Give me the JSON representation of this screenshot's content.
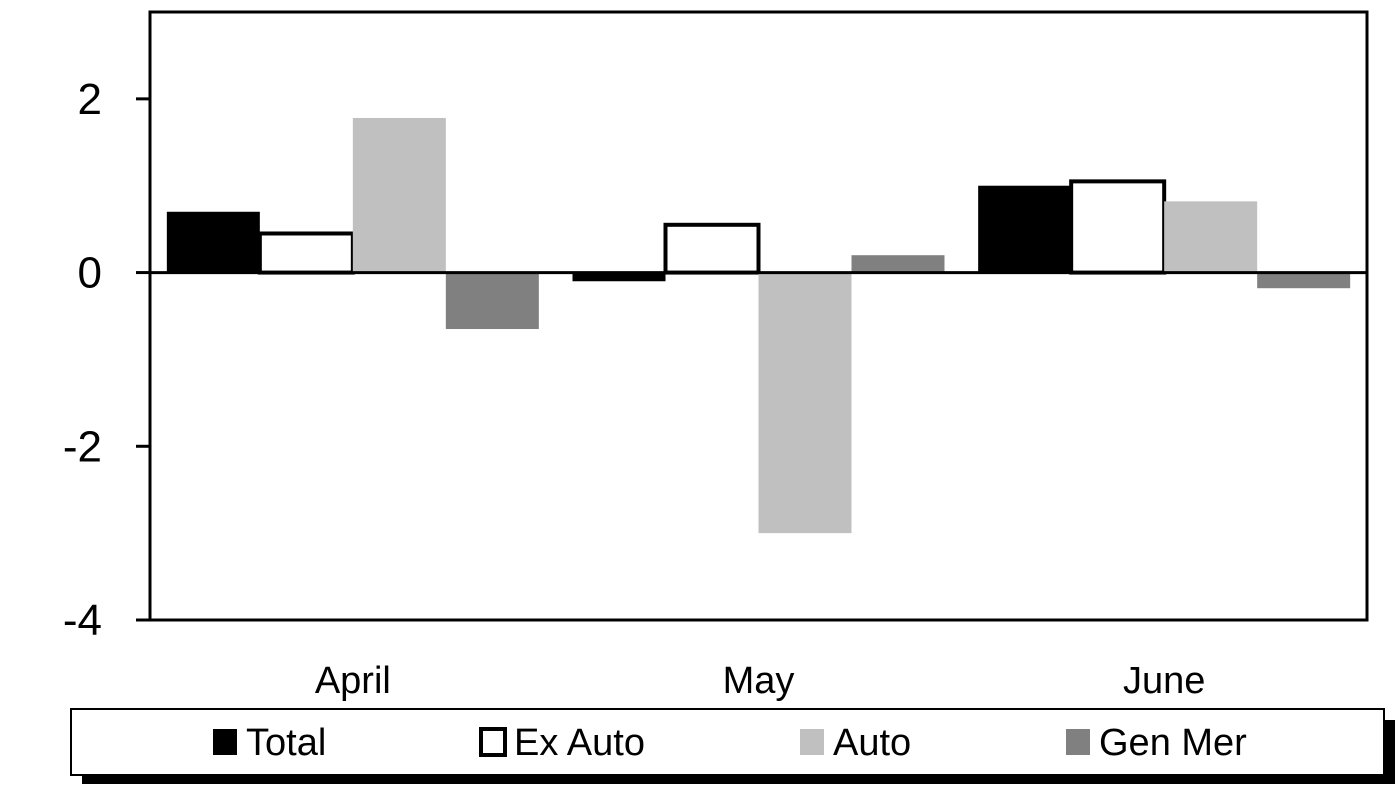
{
  "chart_data": {
    "type": "bar",
    "categories": [
      "April",
      "May",
      "June"
    ],
    "series": [
      {
        "name": "Total",
        "color": "#000000",
        "outline": false,
        "values": [
          0.7,
          -0.1,
          1.0
        ]
      },
      {
        "name": "Ex Auto",
        "color": "#ffffff",
        "outline": true,
        "values": [
          0.45,
          0.55,
          1.05
        ]
      },
      {
        "name": "Auto",
        "color": "#c0c0c0",
        "outline": false,
        "values": [
          1.78,
          -3.0,
          0.82
        ]
      },
      {
        "name": "Gen Mer",
        "color": "#808080",
        "outline": false,
        "values": [
          -0.65,
          0.2,
          -0.18
        ]
      }
    ],
    "yticks": [
      "2",
      "0",
      "-2",
      "-4"
    ],
    "ylim": [
      -4,
      3
    ],
    "legend_position": "bottom",
    "grid": false
  }
}
